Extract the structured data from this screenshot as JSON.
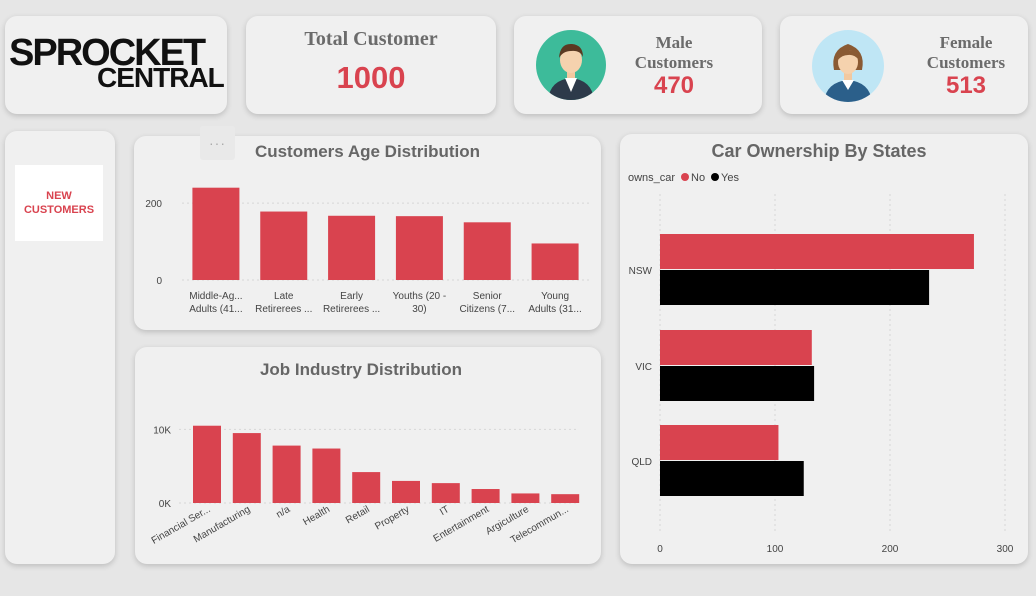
{
  "logo": {
    "line1": "SPROCKET",
    "line2": "CENTRAL"
  },
  "kpis": {
    "total": {
      "label": "Total Customer",
      "value": "1000"
    },
    "male": {
      "label_line1": "Male",
      "label_line2": "Customers",
      "value": "470"
    },
    "female": {
      "label_line1": "Female",
      "label_line2": "Customers",
      "value": "513"
    }
  },
  "sidebar": {
    "new_customers_line1": "NEW",
    "new_customers_line2": "CUSTOMERS"
  },
  "more_options_label": "···",
  "colors": {
    "accent": "#d9434f",
    "yes": "#000000",
    "bg": "#e6e6e6",
    "card": "#f0f0f0"
  },
  "icons": {
    "male": "male-avatar-icon",
    "female": "female-avatar-icon",
    "logo_gear": "gear-icon"
  },
  "chart_data": [
    {
      "id": "age",
      "type": "bar",
      "title": "Customers Age Distribution",
      "categories": [
        "Middle-Ag...",
        "Late",
        "Early",
        "Youths (20 -",
        "Senior",
        "Young"
      ],
      "categories_line2": [
        "Adults (41...",
        "Retirerees ...",
        "Retirerees ...",
        "30)",
        "Citizens (7...",
        "Adults (31..."
      ],
      "values": [
        240,
        178,
        167,
        166,
        150,
        95
      ],
      "yticks": [
        "0",
        "200"
      ],
      "ytick_values": [
        0,
        200
      ],
      "ylim": [
        0,
        260
      ],
      "grid": true
    },
    {
      "id": "industry",
      "type": "bar",
      "title": "Job Industry Distribution",
      "categories": [
        "Financial Ser...",
        "Manufacturing",
        "n/a",
        "Health",
        "Retail",
        "Property",
        "IT",
        "Entertainment",
        "Argiculture",
        "Telecommun..."
      ],
      "values": [
        10500,
        9500,
        7800,
        7400,
        4200,
        3000,
        2700,
        1900,
        1300,
        1200
      ],
      "yticks": [
        "0K",
        "10K"
      ],
      "ytick_values": [
        0,
        10000
      ],
      "ylim": [
        0,
        12500
      ],
      "grid": true
    },
    {
      "id": "cars",
      "type": "bar",
      "title": "Car Ownership By States",
      "legend_title": "owns_car",
      "categories": [
        "NSW",
        "VIC",
        "QLD"
      ],
      "series": [
        {
          "name": "No",
          "values": [
            273,
            132,
            103
          ]
        },
        {
          "name": "Yes",
          "values": [
            234,
            134,
            125
          ]
        }
      ],
      "xticks": [
        "0",
        "100",
        "200",
        "300"
      ],
      "xtick_values": [
        0,
        100,
        200,
        300
      ],
      "xlim": [
        0,
        300
      ],
      "legend_position": "top-left",
      "grid": true
    }
  ]
}
